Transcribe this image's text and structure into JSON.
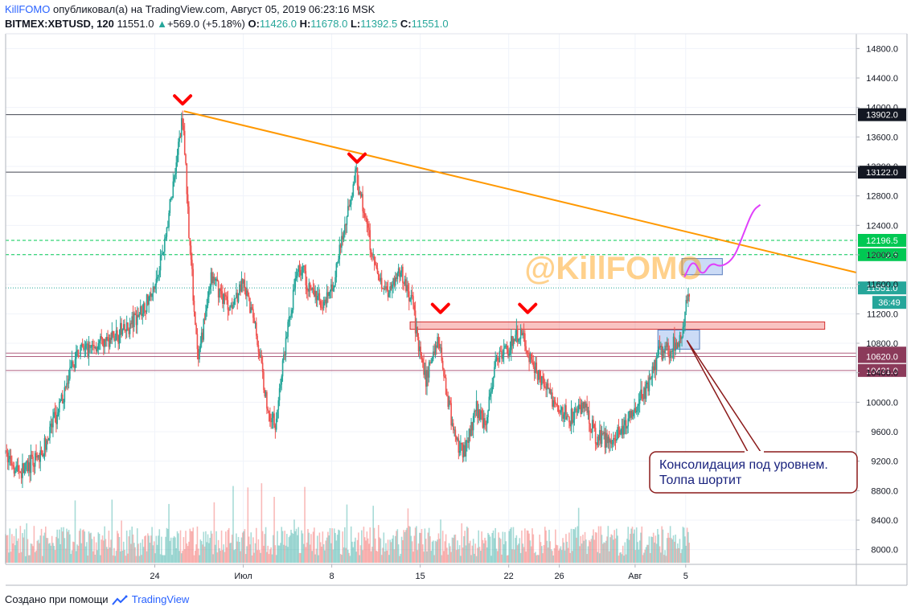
{
  "header": {
    "author": "KillFOMO",
    "published": "опубликовал(а) на TradingView.com, Август 05, 2019 06:23:16 MSK",
    "symbol": "BITMEX:XBTUSD, 120",
    "last": "11551.0",
    "change": "+569.0 (+5.18%)",
    "o_label": "O:",
    "o": "11426.0",
    "h_label": "H:",
    "h": "11678.0",
    "l_label": "L:",
    "l": "11392.5",
    "c_label": "C:",
    "c": "11551.0"
  },
  "footer": {
    "created_with": "Создано при помощи",
    "brand": "TradingView"
  },
  "colors": {
    "up": "#26a69a",
    "down": "#ef5350",
    "trend": "#ff9800",
    "green_level": "#00c853",
    "forecast": "#e040fb"
  },
  "chart_data": {
    "type": "candlestick",
    "price_axis": {
      "min": 7800,
      "max": 15000,
      "ticks": [
        8000,
        8400,
        8800,
        9200,
        9600,
        10000,
        10400,
        10800,
        11200,
        11600,
        12000,
        12400,
        12800,
        13200,
        13600,
        14000,
        14400,
        14800
      ]
    },
    "price_tick_labels": [
      "8000.0",
      "8400.0",
      "8800.0",
      "9200.0",
      "9600.0",
      "10000.0",
      "10400.0",
      "10800.0",
      "11200.0",
      "11600.0",
      "12000.0",
      "12400.0",
      "12800.0",
      "13200.0",
      "13600.0",
      "14000.0",
      "14400.0",
      "14800.0"
    ],
    "time_labels": [
      {
        "label": "24",
        "day": 24
      },
      {
        "label": "Июл",
        "day": 31
      },
      {
        "label": "8",
        "day": 38
      },
      {
        "label": "15",
        "day": 45
      },
      {
        "label": "22",
        "day": 52
      },
      {
        "label": "26",
        "day": 56
      },
      {
        "label": "Авг",
        "day": 62
      },
      {
        "label": "5",
        "day": 66
      }
    ],
    "time_axis": {
      "start_day": 12.2,
      "end_day": 79.5
    },
    "price_path": [
      {
        "day": 12.2,
        "price": 9300
      },
      {
        "day": 13.5,
        "price": 9050
      },
      {
        "day": 15,
        "price": 9250
      },
      {
        "day": 16.5,
        "price": 9900
      },
      {
        "day": 18,
        "price": 10700
      },
      {
        "day": 20,
        "price": 10800
      },
      {
        "day": 22,
        "price": 11000
      },
      {
        "day": 24,
        "price": 11500
      },
      {
        "day": 25,
        "price": 12300
      },
      {
        "day": 26.3,
        "price": 13902
      },
      {
        "day": 26.8,
        "price": 12300
      },
      {
        "day": 27.5,
        "price": 10500
      },
      {
        "day": 28.5,
        "price": 11700
      },
      {
        "day": 30,
        "price": 11300
      },
      {
        "day": 31,
        "price": 11600
      },
      {
        "day": 32,
        "price": 11100
      },
      {
        "day": 33,
        "price": 9900
      },
      {
        "day": 33.6,
        "price": 9700
      },
      {
        "day": 34.5,
        "price": 10900
      },
      {
        "day": 35.5,
        "price": 11900
      },
      {
        "day": 36.5,
        "price": 11500
      },
      {
        "day": 37.5,
        "price": 11300
      },
      {
        "day": 38.2,
        "price": 11600
      },
      {
        "day": 39,
        "price": 12300
      },
      {
        "day": 40,
        "price": 13122
      },
      {
        "day": 40.5,
        "price": 12700
      },
      {
        "day": 41.5,
        "price": 11800
      },
      {
        "day": 42.5,
        "price": 11500
      },
      {
        "day": 43.5,
        "price": 11800
      },
      {
        "day": 44.5,
        "price": 11300
      },
      {
        "day": 45,
        "price": 10700
      },
      {
        "day": 45.5,
        "price": 10300
      },
      {
        "day": 46.5,
        "price": 10900
      },
      {
        "day": 47.2,
        "price": 10100
      },
      {
        "day": 47.8,
        "price": 9500
      },
      {
        "day": 48.5,
        "price": 9300
      },
      {
        "day": 49.5,
        "price": 9900
      },
      {
        "day": 50.3,
        "price": 9700
      },
      {
        "day": 51,
        "price": 10600
      },
      {
        "day": 52,
        "price": 10700
      },
      {
        "day": 53,
        "price": 10950
      },
      {
        "day": 54,
        "price": 10500
      },
      {
        "day": 55,
        "price": 10200
      },
      {
        "day": 56,
        "price": 9900
      },
      {
        "day": 57,
        "price": 9800
      },
      {
        "day": 58,
        "price": 10000
      },
      {
        "day": 59,
        "price": 9500
      },
      {
        "day": 60,
        "price": 9500
      },
      {
        "day": 61,
        "price": 9600
      },
      {
        "day": 62,
        "price": 9900
      },
      {
        "day": 63,
        "price": 10200
      },
      {
        "day": 64,
        "price": 10700
      },
      {
        "day": 65,
        "price": 10750
      },
      {
        "day": 65.7,
        "price": 10900
      },
      {
        "day": 66,
        "price": 11100
      },
      {
        "day": 66.3,
        "price": 11551
      }
    ],
    "horizontal_levels": [
      {
        "price": 13902,
        "label": "13902.0",
        "style": "solid",
        "color": "#434651"
      },
      {
        "price": 13122,
        "label": "13122.0",
        "style": "solid",
        "color": "#434651"
      },
      {
        "price": 12196.5,
        "label": "12196.5",
        "style": "dashed",
        "color": "#00c853"
      },
      {
        "price": 12002.5,
        "label": "12002.5",
        "style": "dashed",
        "color": "#00c853"
      },
      {
        "price": 11551,
        "label": "11551.0",
        "style": "dotted",
        "color": "#26a69a"
      },
      {
        "price": 10666.5,
        "label": "10666.5",
        "style": "solid",
        "color": "#b06080"
      },
      {
        "price": 10620,
        "label": "10620.0",
        "style": "solid",
        "color": "#b06080"
      },
      {
        "price": 10431,
        "label": "10431.0",
        "style": "solid",
        "color": "#b06080"
      }
    ],
    "countdown_label": "36:49",
    "trendline": {
      "from": {
        "day": 26.3,
        "price": 13950
      },
      "to": {
        "day": 79.5,
        "price": 11760
      }
    },
    "peak_markers": [
      {
        "day": 26.2,
        "price": 14070
      },
      {
        "day": 40,
        "price": 13280
      },
      {
        "day": 46.6,
        "price": 11240
      },
      {
        "day": 53.5,
        "price": 11240
      }
    ],
    "red_zone": {
      "day_from": 44.2,
      "day_to": 77,
      "price_from": 10990,
      "price_to": 11090
    },
    "blue_boxes": [
      {
        "day_from": 63.8,
        "day_to": 67.1,
        "price_from": 10720,
        "price_to": 10980
      },
      {
        "day_from": 65.7,
        "day_to": 68.9,
        "price_from": 11730,
        "price_to": 11950
      }
    ],
    "forecast_path": [
      {
        "day": 65.9,
        "price": 11700
      },
      {
        "day": 66.6,
        "price": 11950
      },
      {
        "day": 67.3,
        "price": 11700
      },
      {
        "day": 68,
        "price": 11900
      },
      {
        "day": 68.8,
        "price": 11830
      },
      {
        "day": 69.8,
        "price": 11950
      },
      {
        "day": 70.5,
        "price": 12250
      },
      {
        "day": 71.3,
        "price": 12600
      },
      {
        "day": 71.9,
        "price": 12680
      }
    ],
    "watermark": "@KillFOMO",
    "annotation": {
      "lines": [
        "Консолидация под уровнем.",
        "Толпа шортит"
      ],
      "anchor": {
        "day": 66.1,
        "price": 10840
      }
    }
  }
}
